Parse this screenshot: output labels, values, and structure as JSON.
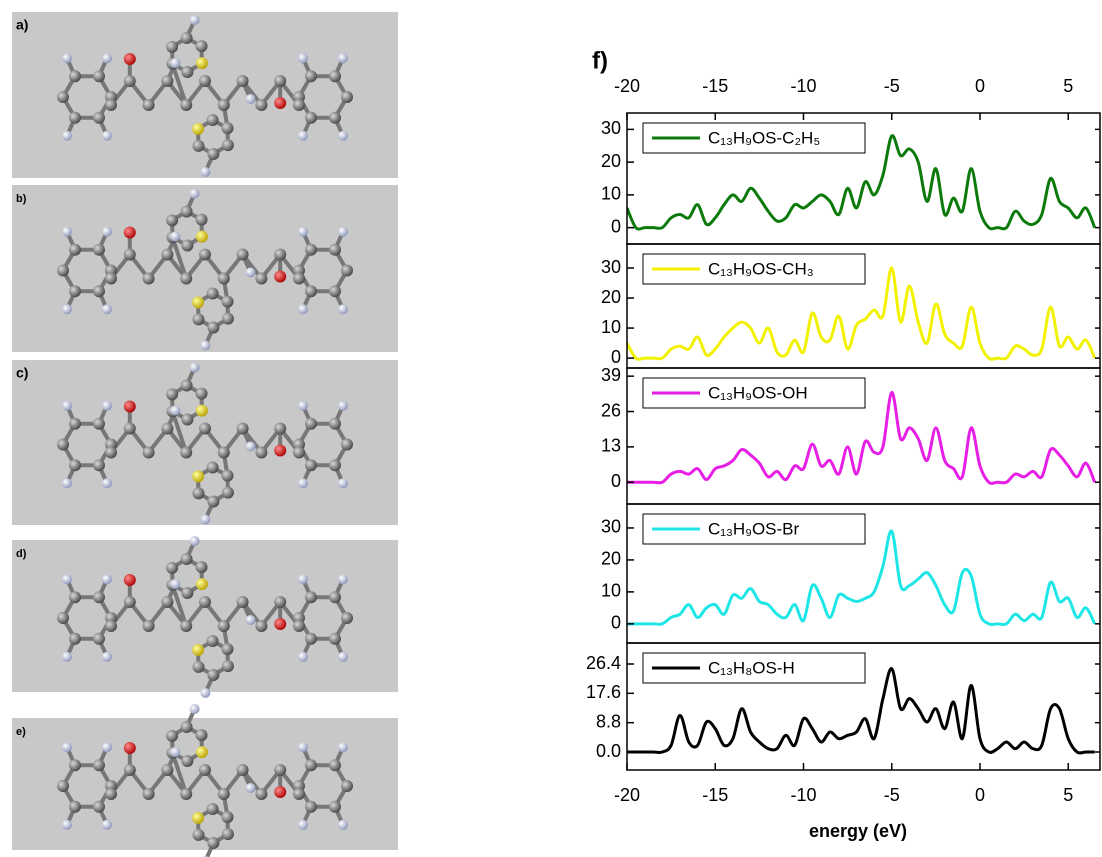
{
  "panels": [
    {
      "label": "a)"
    },
    {
      "label": "b)"
    },
    {
      "label": "c)"
    },
    {
      "label": "d)"
    },
    {
      "label": "e)"
    }
  ],
  "figure_label": "f)",
  "chart_data": [
    {
      "type": "line",
      "xlim": [
        -20,
        6.8
      ],
      "ylim": [
        -5,
        35
      ],
      "yticks": [
        0,
        10,
        20,
        30
      ],
      "xticks": [
        -20,
        -15,
        -10,
        -5,
        0,
        5
      ],
      "x": [
        -20,
        -19.5,
        -19,
        -18.5,
        -18,
        -17.5,
        -17,
        -16.5,
        -16,
        -15.5,
        -15,
        -14.5,
        -14,
        -13.5,
        -13,
        -12.5,
        -12,
        -11.5,
        -11,
        -10.5,
        -10,
        -9.5,
        -9,
        -8.5,
        -8,
        -7.5,
        -7,
        -6.5,
        -6,
        -5.5,
        -5,
        -4.5,
        -4,
        -3.5,
        -3,
        -2.5,
        -2,
        -1.5,
        -1,
        -0.5,
        0,
        0.5,
        1,
        1.5,
        2,
        2.5,
        3,
        3.5,
        4,
        4.5,
        5,
        5.5,
        6,
        6.5
      ],
      "series": [
        {
          "name": "C₁₃H₉OS-C₂H₅",
          "color": "#0b7a0b",
          "values": [
            6,
            0,
            0,
            0,
            0,
            3,
            4,
            3,
            7,
            1,
            3,
            7,
            10,
            8,
            12,
            9,
            5,
            2,
            3,
            7,
            6,
            8,
            10,
            8,
            4,
            12,
            6,
            14,
            10,
            16,
            28,
            22,
            24,
            20,
            8,
            18,
            4,
            9,
            5,
            18,
            5,
            0,
            0,
            0,
            5,
            2,
            1,
            4,
            15,
            8,
            6,
            3,
            6,
            0
          ]
        }
      ]
    },
    {
      "type": "line",
      "xlim": [
        -20,
        6.8
      ],
      "ylim": [
        -3.3,
        38
      ],
      "yticks": [
        0,
        10,
        20,
        30
      ],
      "x": [
        -20,
        -19.5,
        -19,
        -18.5,
        -18,
        -17.5,
        -17,
        -16.5,
        -16,
        -15.5,
        -15,
        -14.5,
        -14,
        -13.5,
        -13,
        -12.5,
        -12,
        -11.5,
        -11,
        -10.5,
        -10,
        -9.5,
        -9,
        -8.5,
        -8,
        -7.5,
        -7,
        -6.5,
        -6,
        -5.5,
        -5,
        -4.5,
        -4,
        -3.5,
        -3,
        -2.5,
        -2,
        -1.5,
        -1,
        -0.5,
        0,
        0.5,
        1,
        1.5,
        2,
        2.5,
        3,
        3.5,
        4,
        4.5,
        5,
        5.5,
        6,
        6.5
      ],
      "series": [
        {
          "name": "C₁₃H₉OS-CH₃",
          "color": "#f2f200",
          "values": [
            5,
            0,
            0,
            0,
            0,
            3,
            4,
            3,
            7,
            1,
            3,
            7,
            10,
            12,
            10,
            5,
            10,
            2,
            1,
            6,
            2,
            15,
            7,
            6,
            14,
            3,
            11,
            13,
            16,
            14,
            30,
            12,
            24,
            12,
            5,
            18,
            8,
            5,
            4,
            17,
            5,
            0,
            0,
            0,
            4,
            3,
            1,
            3,
            17,
            4,
            7,
            3,
            6,
            0
          ]
        }
      ]
    },
    {
      "type": "line",
      "xlim": [
        -20,
        6.8
      ],
      "ylim": [
        -8,
        42
      ],
      "yticks": [
        0,
        13,
        26,
        39
      ],
      "x": [
        -20,
        -19.5,
        -19,
        -18.5,
        -18,
        -17.5,
        -17,
        -16.5,
        -16,
        -15.5,
        -15,
        -14.5,
        -14,
        -13.5,
        -13,
        -12.5,
        -12,
        -11.5,
        -11,
        -10.5,
        -10,
        -9.5,
        -9,
        -8.5,
        -8,
        -7.5,
        -7,
        -6.5,
        -6,
        -5.5,
        -5,
        -4.5,
        -4,
        -3.5,
        -3,
        -2.5,
        -2,
        -1.5,
        -1,
        -0.5,
        0,
        0.5,
        1,
        1.5,
        2,
        2.5,
        3,
        3.5,
        4,
        4.5,
        5,
        5.5,
        6,
        6.5
      ],
      "series": [
        {
          "name": "C₁₃H₉OS-OH",
          "color": "#e61ee6",
          "values": [
            0,
            0,
            0,
            0,
            0,
            3,
            4,
            3,
            5,
            1,
            5,
            6,
            8,
            12,
            10,
            7,
            2,
            4,
            1,
            6,
            5,
            14,
            6,
            8,
            3,
            13,
            3,
            15,
            11,
            13,
            33,
            16,
            20,
            16,
            8,
            20,
            8,
            5,
            2,
            20,
            6,
            0,
            0,
            0,
            3,
            2,
            4,
            2,
            12,
            10,
            6,
            2,
            7,
            0
          ]
        }
      ]
    },
    {
      "type": "line",
      "xlim": [
        -20,
        6.8
      ],
      "ylim": [
        -6,
        37.5
      ],
      "yticks": [
        0,
        10,
        20,
        30
      ],
      "x": [
        -20,
        -19.5,
        -19,
        -18.5,
        -18,
        -17.5,
        -17,
        -16.5,
        -16,
        -15.5,
        -15,
        -14.5,
        -14,
        -13.5,
        -13,
        -12.5,
        -12,
        -11.5,
        -11,
        -10.5,
        -10,
        -9.5,
        -9,
        -8.5,
        -8,
        -7.5,
        -7,
        -6.5,
        -6,
        -5.5,
        -5,
        -4.5,
        -4,
        -3.5,
        -3,
        -2.5,
        -2,
        -1.5,
        -1,
        -0.5,
        0,
        0.5,
        1,
        1.5,
        2,
        2.5,
        3,
        3.5,
        4,
        4.5,
        5,
        5.5,
        6,
        6.5
      ],
      "series": [
        {
          "name": "C₁₃H₉OS-Br",
          "color": "#1ee6e6",
          "values": [
            0,
            0,
            0,
            0,
            0,
            2,
            3,
            6,
            2,
            5,
            6,
            3,
            9,
            8,
            11,
            7,
            6,
            3,
            2,
            6,
            1,
            12,
            8,
            2,
            9,
            8,
            7,
            8,
            10,
            18,
            29,
            12,
            12,
            14,
            16,
            12,
            6,
            4,
            16,
            15,
            3,
            0,
            0,
            0,
            3,
            1,
            3,
            2,
            13,
            7,
            8,
            2,
            5,
            0
          ]
        }
      ]
    },
    {
      "type": "line",
      "xlim": [
        -20,
        6.8
      ],
      "ylim": [
        -5.4,
        32.7
      ],
      "xlabel": "energy (eV)",
      "yticks": [
        {
          "value": 0,
          "label": "0.0"
        },
        8.8,
        17.6,
        26.4
      ],
      "xticks": [
        -20,
        -15,
        -10,
        -5,
        0,
        5
      ],
      "x": [
        -20,
        -19.5,
        -19,
        -18.5,
        -18,
        -17.5,
        -17,
        -16.5,
        -16,
        -15.5,
        -15,
        -14.5,
        -14,
        -13.5,
        -13,
        -12.5,
        -12,
        -11.5,
        -11,
        -10.5,
        -10,
        -9.5,
        -9,
        -8.5,
        -8,
        -7.5,
        -7,
        -6.5,
        -6,
        -5.5,
        -5,
        -4.5,
        -4,
        -3.5,
        -3,
        -2.5,
        -2,
        -1.5,
        -1,
        -0.5,
        0,
        0.5,
        1,
        1.5,
        2,
        2.5,
        3,
        3.5,
        4,
        4.5,
        5,
        5.5,
        6,
        6.5
      ],
      "series": [
        {
          "name": "C₁₃H₈OS-H",
          "color": "#000000",
          "values": [
            0,
            0,
            0,
            0,
            0,
            2,
            11,
            3,
            2,
            9,
            7,
            2,
            4,
            13,
            6,
            3,
            1,
            1,
            5,
            2,
            10,
            7,
            3,
            6,
            4,
            5,
            6,
            10,
            4,
            16,
            25,
            13,
            16,
            13,
            9,
            13,
            7,
            15,
            4,
            20,
            4,
            0,
            1,
            3,
            1,
            3,
            1,
            2,
            13,
            13,
            4,
            0,
            0,
            0
          ]
        }
      ]
    }
  ]
}
